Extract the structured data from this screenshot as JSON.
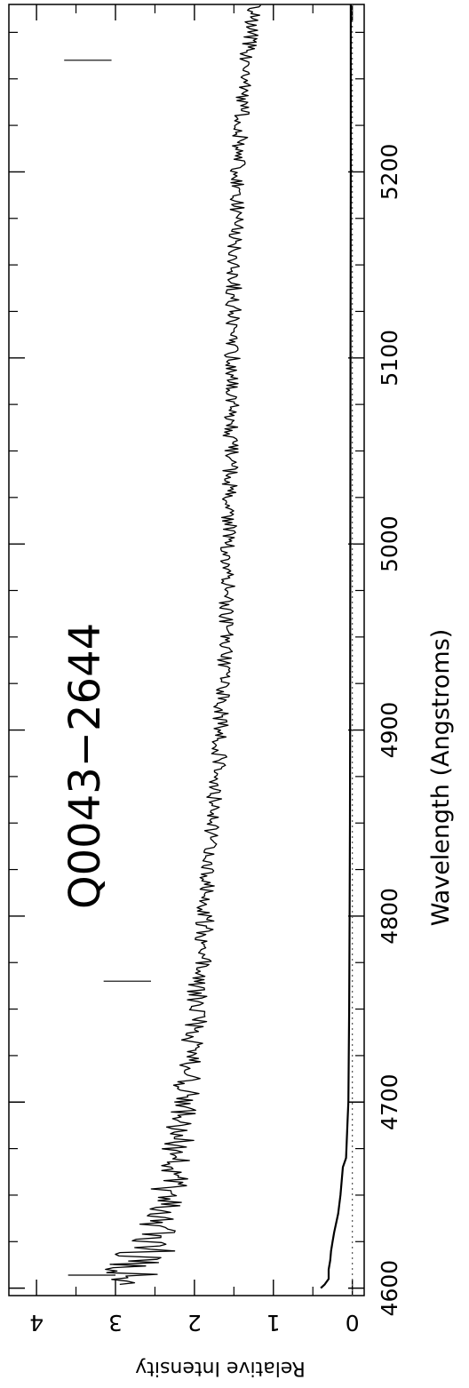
{
  "chart_data": {
    "type": "line",
    "title": "Q0043−2644",
    "xlabel": "Wavelength (Angstroms)",
    "ylabel": "Relative Intensity",
    "xlim": [
      4596,
      5290
    ],
    "ylim": [
      -0.15,
      4.35
    ],
    "x_major_ticks": [
      4600,
      4700,
      4800,
      4900,
      5000,
      5100,
      5200
    ],
    "x_minor_ticks": [
      4625,
      4650,
      4675,
      4725,
      4750,
      4775,
      4825,
      4850,
      4875,
      4925,
      4950,
      4975,
      5025,
      5050,
      5075,
      5125,
      5150,
      5175,
      5225,
      5250,
      5275
    ],
    "x_tick_labels": [
      "4600",
      "4700",
      "4800",
      "4900",
      "5000",
      "5100",
      "5200"
    ],
    "y_major_ticks": [
      0,
      1,
      2,
      3,
      4
    ],
    "y_minor_ticks": [
      0.5,
      1.5,
      2.5,
      3.5
    ],
    "y_tick_labels": [
      "0",
      "1",
      "2",
      "3",
      "4"
    ],
    "zero_line": 0,
    "series": [
      {
        "role": "flux",
        "x": [
          4602,
          4605,
          4610,
          4615,
          4620,
          4625,
          4630,
          4640,
          4650,
          4660,
          4670,
          4680,
          4690,
          4700,
          4710,
          4720,
          4730,
          4740,
          4750,
          4760,
          4770,
          4780,
          4790,
          4800,
          4810,
          4820,
          4830,
          4840,
          4850,
          4860,
          4870,
          4880,
          4890,
          4900,
          4920,
          4940,
          4960,
          4980,
          5000,
          5020,
          5040,
          5060,
          5080,
          5100,
          5120,
          5140,
          5160,
          5180,
          5200,
          5220,
          5240,
          5260,
          5270,
          5280,
          5290
        ],
        "y": [
          2.9,
          2.7,
          2.8,
          2.75,
          2.6,
          2.5,
          2.45,
          2.4,
          2.35,
          2.3,
          2.25,
          2.2,
          2.15,
          2.12,
          2.1,
          2.05,
          2.02,
          2.0,
          1.98,
          1.95,
          1.92,
          1.9,
          1.88,
          1.86,
          1.85,
          1.84,
          1.82,
          1.8,
          1.78,
          1.76,
          1.72,
          1.7,
          1.68,
          1.67,
          1.65,
          1.62,
          1.6,
          1.58,
          1.57,
          1.56,
          1.55,
          1.54,
          1.53,
          1.52,
          1.51,
          1.5,
          1.48,
          1.46,
          1.45,
          1.42,
          1.4,
          1.35,
          1.3,
          1.28,
          1.25
        ],
        "noise_amplitude": [
          0.15,
          0.35,
          0.5,
          0.5,
          0.45,
          0.35,
          0.3,
          0.25,
          0.25,
          0.22,
          0.2,
          0.2,
          0.18,
          0.18,
          0.16,
          0.16,
          0.16,
          0.15,
          0.15,
          0.14,
          0.14,
          0.12,
          0.12,
          0.12,
          0.1,
          0.1,
          0.1,
          0.1,
          0.1,
          0.1,
          0.1,
          0.1,
          0.1,
          0.1,
          0.1,
          0.1,
          0.1,
          0.1,
          0.1,
          0.1,
          0.1,
          0.1,
          0.1,
          0.1,
          0.1,
          0.1,
          0.1,
          0.1,
          0.1,
          0.1,
          0.1,
          0.1,
          0.1,
          0.1,
          0.1
        ]
      },
      {
        "role": "error",
        "x": [
          4600,
          4602,
          4605,
          4610,
          4615,
          4620,
          4625,
          4630,
          4640,
          4650,
          4665,
          4670,
          4690,
          4700,
          4750,
          4800,
          4850,
          4900,
          5000,
          5100,
          5200,
          5290
        ],
        "y": [
          0.4,
          0.35,
          0.3,
          0.3,
          0.28,
          0.27,
          0.25,
          0.23,
          0.18,
          0.15,
          0.12,
          0.08,
          0.06,
          0.05,
          0.04,
          0.035,
          0.03,
          0.028,
          0.025,
          0.023,
          0.02,
          0.02
        ]
      }
    ],
    "markers": [
      {
        "x": 4607,
        "y_range": [
          3.0,
          3.6
        ]
      },
      {
        "x": 4765,
        "y_range": [
          2.55,
          3.15
        ]
      },
      {
        "x": 5260,
        "y_range": [
          3.05,
          3.65
        ]
      }
    ],
    "grid": false,
    "legend": "none"
  }
}
